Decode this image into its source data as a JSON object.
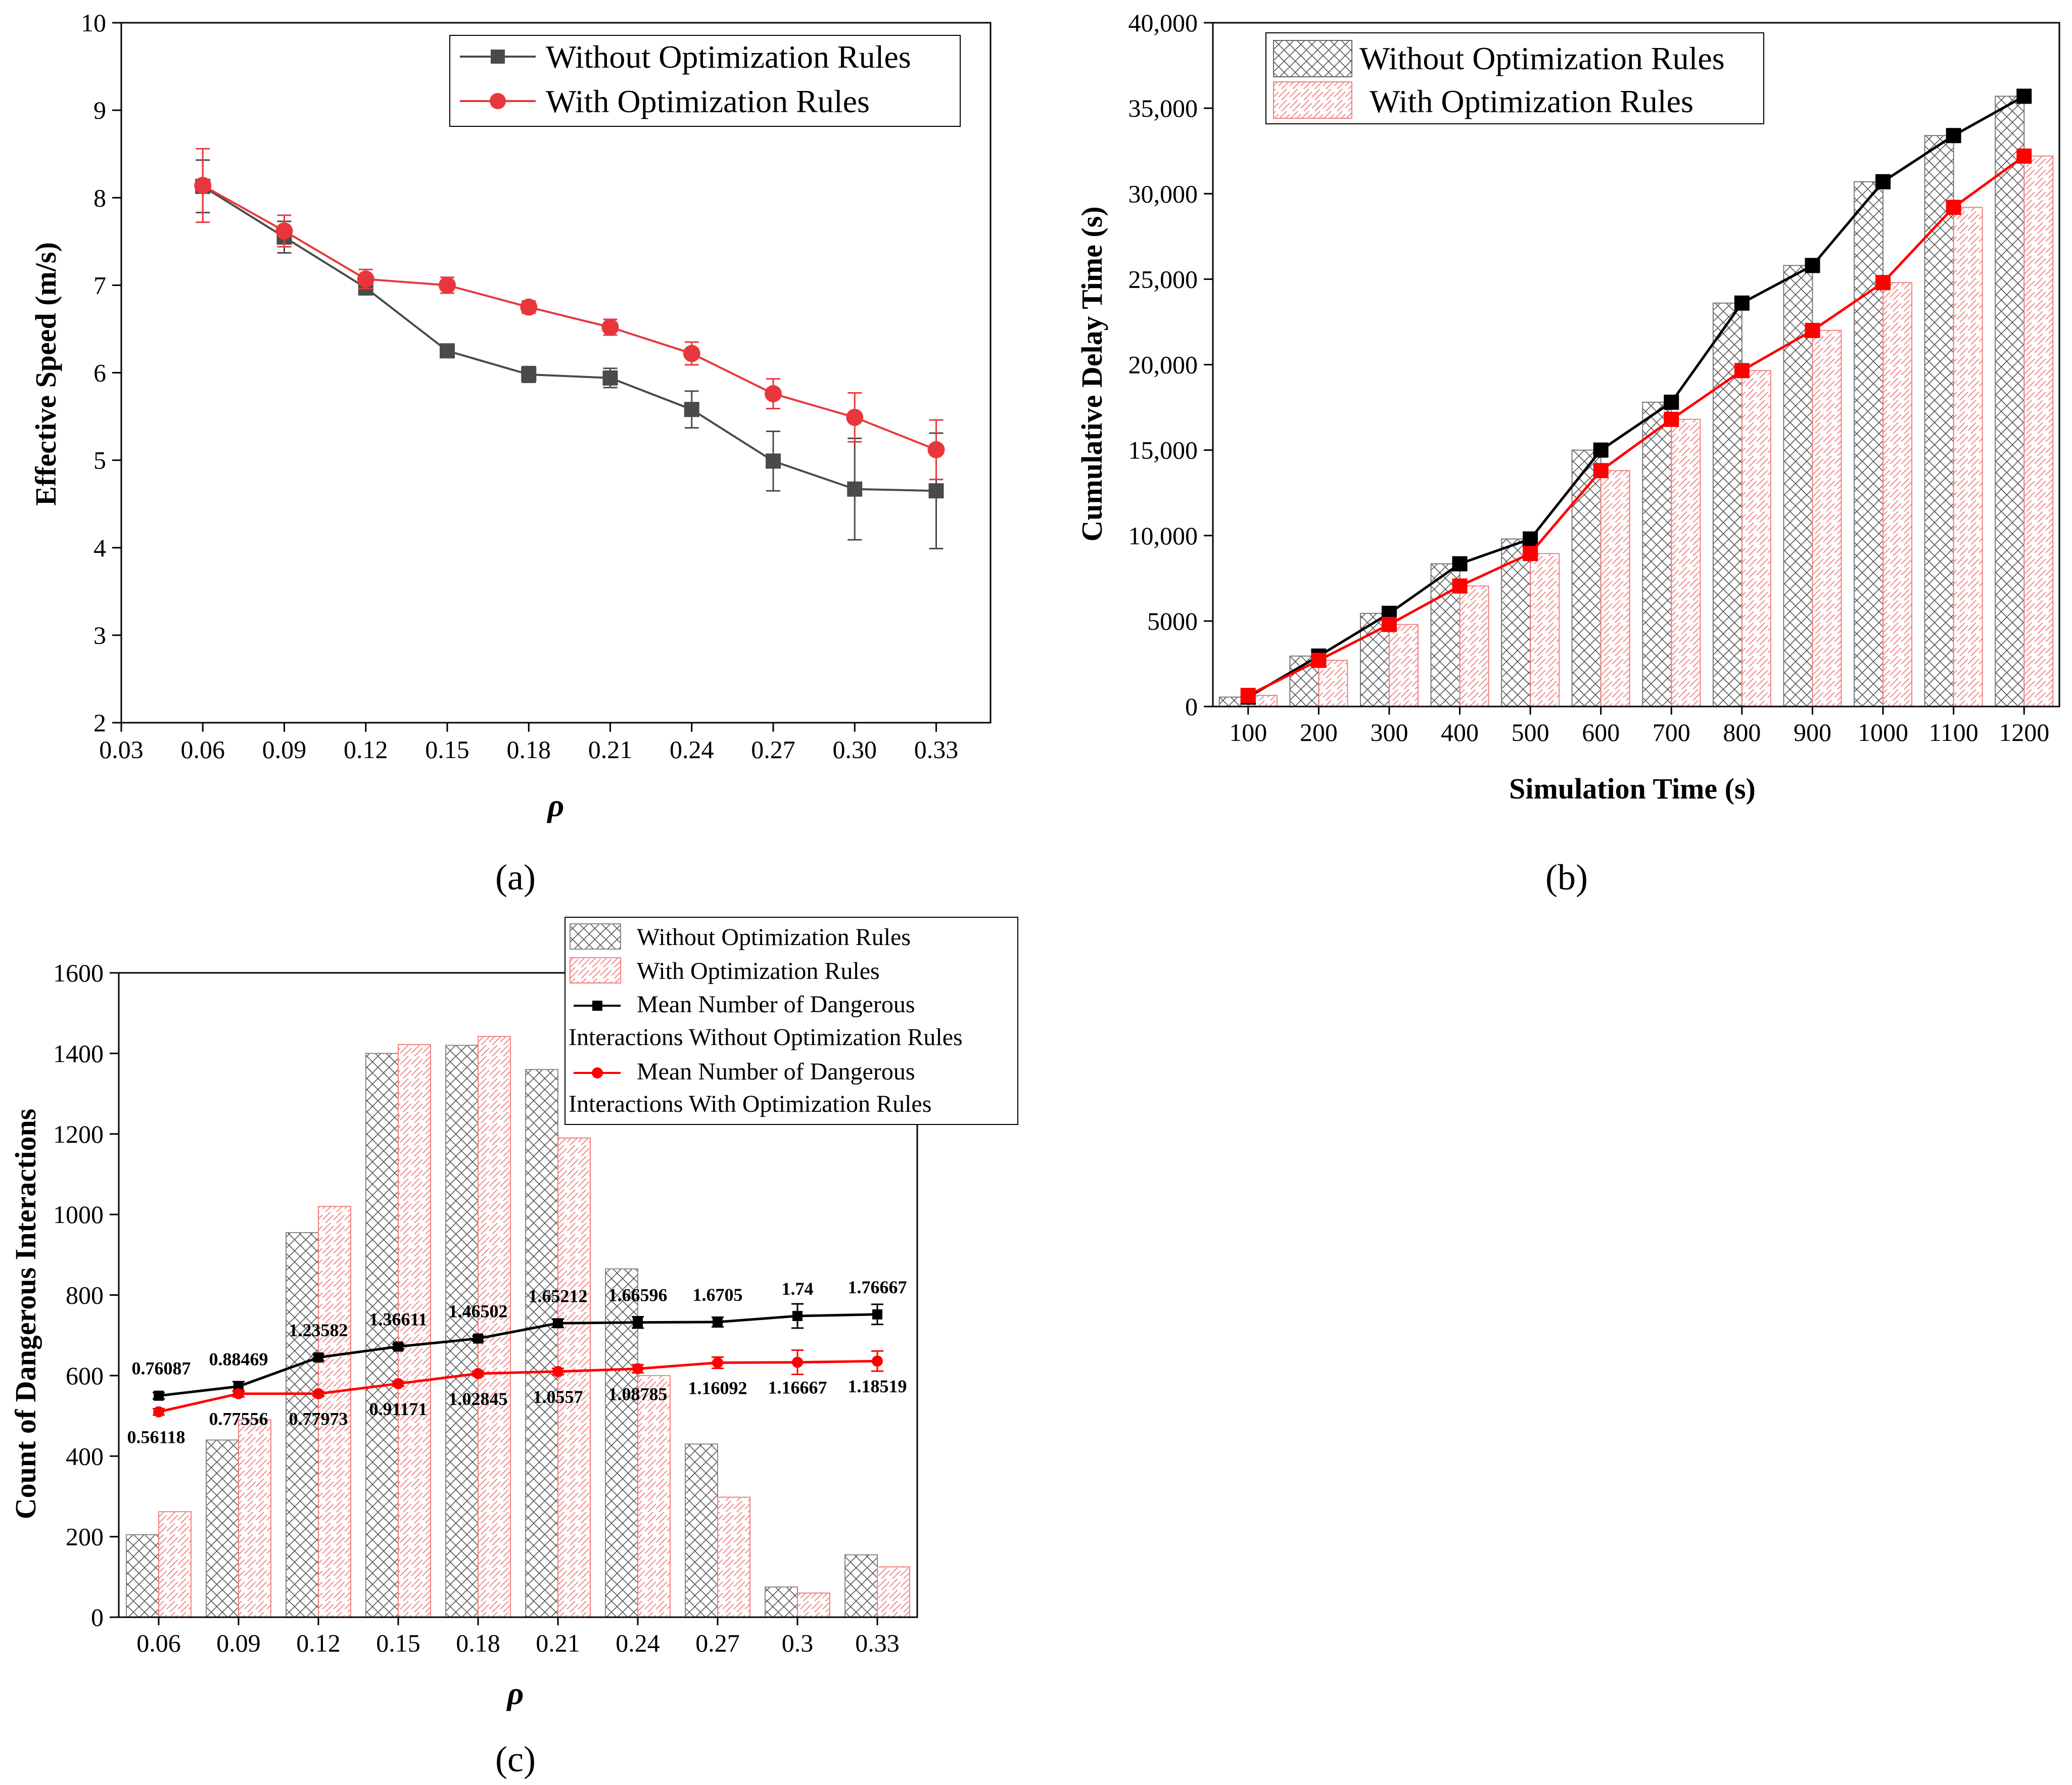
{
  "chart_data": [
    {
      "panel": "a",
      "type": "line",
      "panel_label": "(a)",
      "xlabel": "ρ",
      "ylabel": "Effective Speed (m/s)",
      "xlim": [
        0.03,
        0.35
      ],
      "ylim": [
        2,
        10
      ],
      "xticks": [
        "0.03",
        "0.06",
        "0.09",
        "0.12",
        "0.15",
        "0.18",
        "0.21",
        "0.24",
        "0.27",
        "0.30",
        "0.33"
      ],
      "yticks": [
        "2",
        "3",
        "4",
        "5",
        "6",
        "7",
        "8",
        "9",
        "10"
      ],
      "x": [
        0.06,
        0.09,
        0.12,
        0.15,
        0.18,
        0.21,
        0.24,
        0.27,
        0.3,
        0.33
      ],
      "series": [
        {
          "name": "Without Optimization Rules",
          "color": "#4a4a4a",
          "marker": "square",
          "values": [
            8.13,
            7.55,
            6.97,
            6.25,
            5.98,
            5.94,
            5.58,
            4.99,
            4.67,
            4.65
          ],
          "errors": [
            0.3,
            0.18,
            0.08,
            0.07,
            0.09,
            0.11,
            0.21,
            0.34,
            0.58,
            0.66
          ]
        },
        {
          "name": "With Optimization Rules",
          "color": "#e8373c",
          "marker": "circle",
          "values": [
            8.14,
            7.62,
            7.07,
            7.0,
            6.75,
            6.52,
            6.22,
            5.76,
            5.49,
            5.12
          ],
          "errors": [
            0.42,
            0.18,
            0.11,
            0.09,
            0.07,
            0.09,
            0.13,
            0.17,
            0.28,
            0.34
          ]
        }
      ],
      "legend": "top-right"
    },
    {
      "panel": "b",
      "type": "bar",
      "panel_label": "(b)",
      "xlabel": "Simulation Time (s)",
      "ylabel": "Cumulative Delay Time (s)",
      "ylim": [
        0,
        40000
      ],
      "yticks": [
        "0",
        "5000",
        "10,000",
        "15,000",
        "20,000",
        "25,000",
        "30,000",
        "35,000",
        "40,000"
      ],
      "categories": [
        "100",
        "200",
        "300",
        "400",
        "500",
        "600",
        "700",
        "800",
        "900",
        "1000",
        "1100",
        "1200"
      ],
      "series": [
        {
          "name": "Without Optimization Rules",
          "color": "#000000",
          "hatch": "crosshatch",
          "values": [
            550,
            2950,
            5450,
            8350,
            9800,
            15000,
            17800,
            23600,
            25800,
            30700,
            33400,
            35700
          ]
        },
        {
          "name": "With Optimization Rules",
          "color": "#ff0000",
          "hatch": "diagonal",
          "values": [
            650,
            2700,
            4800,
            7050,
            8950,
            13800,
            16800,
            19650,
            22000,
            24800,
            29200,
            32200
          ]
        }
      ],
      "legend": "top-left"
    },
    {
      "panel": "c",
      "type": "bar",
      "panel_label": "(c)",
      "xlabel": "ρ",
      "ylabel": "Count of Dangerous Interactions",
      "ylim": [
        0,
        1600
      ],
      "yticks": [
        "0",
        "200",
        "400",
        "600",
        "800",
        "1000",
        "1200",
        "1400",
        "1600"
      ],
      "categories": [
        "0.06",
        "0.09",
        "0.12",
        "0.15",
        "0.18",
        "0.21",
        "0.24",
        "0.27",
        "0.3",
        "0.33"
      ],
      "series": [
        {
          "name": "Without Optimization Rules",
          "color": "#808080",
          "hatch": "crosshatch",
          "values": [
            205,
            440,
            955,
            1400,
            1420,
            1360,
            865,
            430,
            75,
            155
          ]
        },
        {
          "name": "With Optimization Rules",
          "color": "#f08080",
          "hatch": "diagonal",
          "values": [
            262,
            490,
            1020,
            1422,
            1442,
            1190,
            600,
            298,
            60,
            125
          ]
        }
      ],
      "lines": [
        {
          "name_line1": "Mean Number of Dangerous",
          "name_line2": "Interactions Without Optimization Rules",
          "color": "#000000",
          "marker": "square",
          "values": [
            550,
            573,
            645,
            672,
            692,
            730,
            732,
            733,
            748,
            752
          ],
          "errors": [
            8,
            12,
            8,
            6,
            6,
            10,
            14,
            12,
            30,
            25
          ],
          "labels": [
            "0.76087",
            "0.88469",
            "1.23582",
            "1.36611",
            "1.46502",
            "1.65212",
            "1.66596",
            "1.6705",
            "1.74",
            "1.76667"
          ]
        },
        {
          "name_line1": "Mean Number of Dangerous",
          "name_line2": "Interactions With Optimization Rules",
          "color": "#ff0000",
          "marker": "circle",
          "values": [
            510,
            555,
            555,
            580,
            605,
            610,
            617,
            632,
            633,
            636
          ],
          "errors": [
            8,
            8,
            6,
            6,
            6,
            8,
            10,
            14,
            30,
            25
          ],
          "labels": [
            "0.56118",
            "0.77556",
            "0.77973",
            "0.91171",
            "1.02845",
            "1.0557",
            "1.08785",
            "1.16092",
            "1.16667",
            "1.18519"
          ]
        }
      ],
      "legend": "top-right"
    }
  ]
}
